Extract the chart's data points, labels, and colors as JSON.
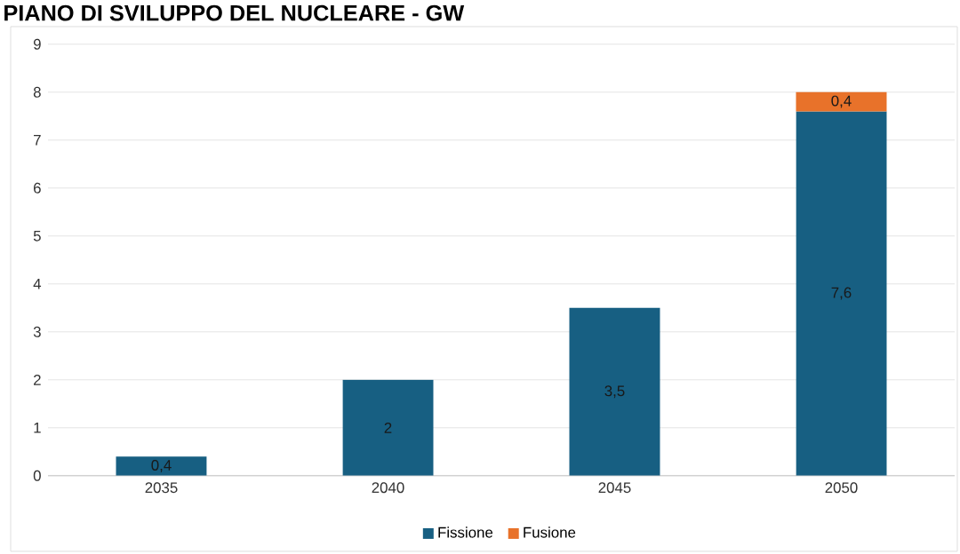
{
  "chart_data": {
    "type": "bar",
    "title": "PIANO DI SVILUPPO DEL NUCLEARE - GW",
    "categories": [
      "2035",
      "2040",
      "2045",
      "2050"
    ],
    "stacked": true,
    "series": [
      {
        "name": "Fissione",
        "color": "#175f82",
        "values": [
          0.4,
          2,
          3.5,
          7.6
        ],
        "value_labels": [
          "0,4",
          "2",
          "3,5",
          "7,6"
        ]
      },
      {
        "name": "Fusione",
        "color": "#e8722a",
        "values": [
          null,
          null,
          null,
          0.4
        ],
        "value_labels": [
          null,
          null,
          null,
          "0,4"
        ]
      }
    ],
    "ylim": [
      0,
      9
    ],
    "yticks": [
      0,
      1,
      2,
      3,
      4,
      5,
      6,
      7,
      8,
      9
    ],
    "grid": "y",
    "legend": "bottom"
  }
}
